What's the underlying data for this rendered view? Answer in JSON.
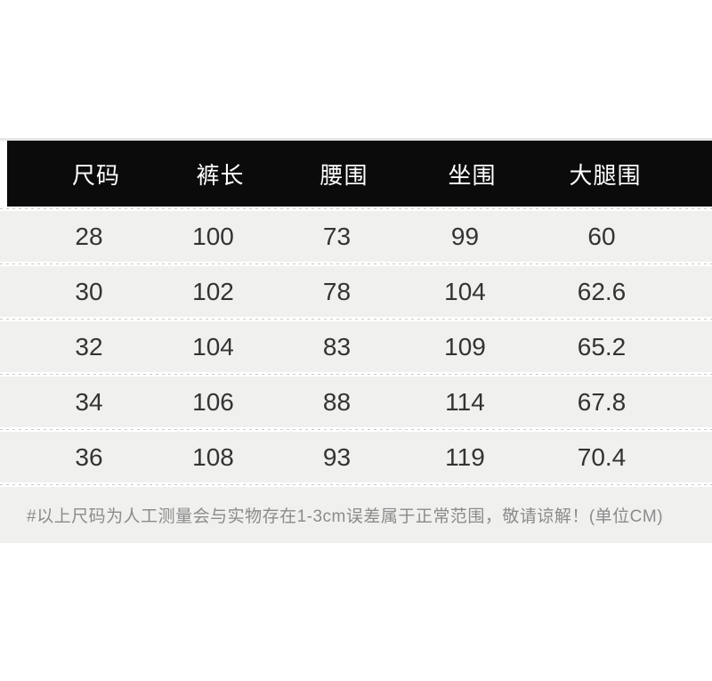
{
  "chart_data": {
    "type": "table",
    "columns": [
      "尺码",
      "裤长",
      "腰围",
      "坐围",
      "大腿围"
    ],
    "rows": [
      [
        "28",
        "100",
        "73",
        "99",
        "60"
      ],
      [
        "30",
        "102",
        "78",
        "104",
        "62.6"
      ],
      [
        "32",
        "104",
        "83",
        "109",
        "65.2"
      ],
      [
        "34",
        "106",
        "88",
        "114",
        "67.8"
      ],
      [
        "36",
        "108",
        "93",
        "119",
        "70.4"
      ]
    ],
    "note": "#以上尺码为人工测量会与实物存在1-3cm误差属于正常范围，敬请谅解！(单位CM)"
  },
  "colors": {
    "page_bg": "#ffffff",
    "top_line": "#e6e6e4",
    "header_bg": "#0b0b0b",
    "header_text": "#ffffff",
    "row_bg": "#f0f0ef",
    "value_text": "#333333",
    "note_text": "#8b8b8b",
    "divider": "#c9c9c9"
  }
}
